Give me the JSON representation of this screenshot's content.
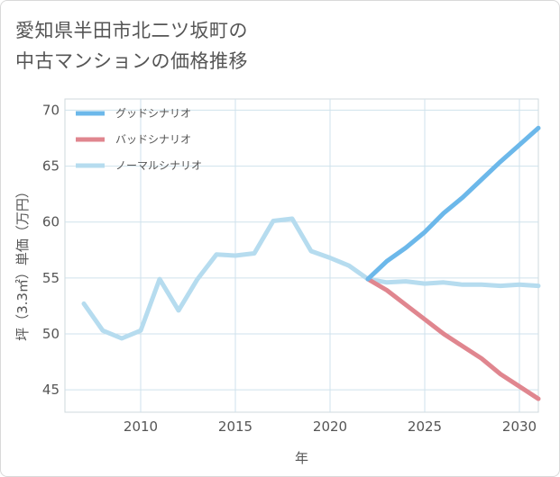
{
  "title_lines": [
    "愛知県半田市北二ツ坂町の",
    "中古マンションの価格推移"
  ],
  "chart_data": {
    "type": "line",
    "title": "愛知県半田市北二ツ坂町の中古マンションの価格推移",
    "xlabel": "年",
    "ylabel": "坪（3.3㎡）単価（万円）",
    "xlim": [
      2006,
      2031
    ],
    "ylim": [
      43,
      71
    ],
    "xticks": [
      2010,
      2015,
      2020,
      2025,
      2030
    ],
    "yticks": [
      45,
      50,
      55,
      60,
      65,
      70
    ],
    "grid": true,
    "legend_position": "top-left",
    "series": [
      {
        "name": "グッドシナリオ",
        "color": "#6cb8ea",
        "x": [
          2022,
          2023,
          2024,
          2025,
          2026,
          2027,
          2028,
          2029,
          2030,
          2031
        ],
        "values": [
          54.9,
          56.5,
          57.7,
          59.1,
          60.8,
          62.2,
          63.8,
          65.4,
          66.9,
          68.4
        ]
      },
      {
        "name": "バッドシナリオ",
        "color": "#e0868f",
        "x": [
          2022,
          2023,
          2024,
          2025,
          2026,
          2027,
          2028,
          2029,
          2030,
          2031
        ],
        "values": [
          54.9,
          53.9,
          52.6,
          51.3,
          50.0,
          48.9,
          47.8,
          46.4,
          45.3,
          44.2
        ]
      },
      {
        "name": "ノーマルシナリオ",
        "color": "#b6dcef",
        "x": [
          2007,
          2008,
          2009,
          2010,
          2011,
          2012,
          2013,
          2014,
          2015,
          2016,
          2017,
          2018,
          2019,
          2020,
          2021,
          2022,
          2023,
          2024,
          2025,
          2026,
          2027,
          2028,
          2029,
          2030,
          2031
        ],
        "values": [
          52.7,
          50.3,
          49.6,
          50.3,
          54.9,
          52.1,
          54.9,
          57.1,
          57.0,
          57.2,
          60.1,
          60.3,
          57.4,
          56.8,
          56.1,
          54.9,
          54.6,
          54.7,
          54.5,
          54.6,
          54.4,
          54.4,
          54.3,
          54.4,
          54.3
        ]
      }
    ]
  }
}
